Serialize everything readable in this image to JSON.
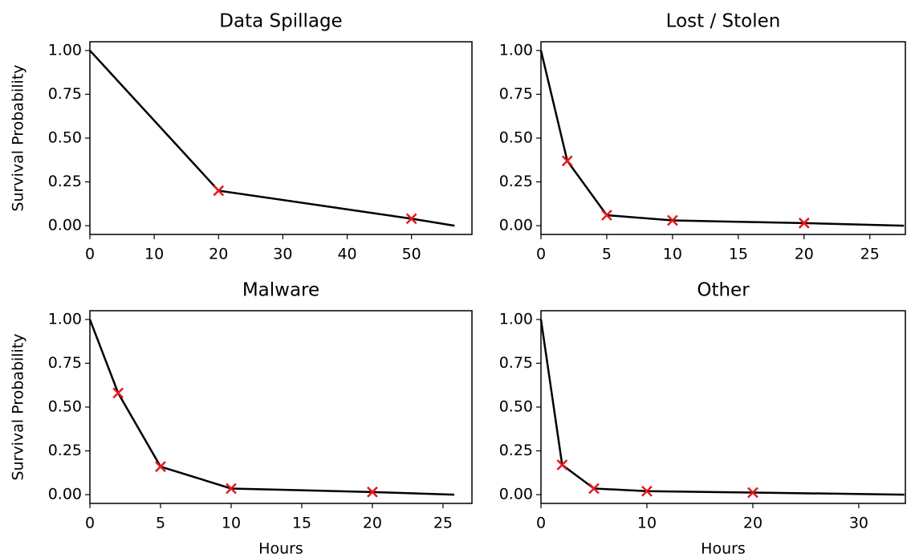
{
  "chart_data": [
    {
      "type": "line",
      "title": "Data Spillage",
      "ylabel": "Survival Probability",
      "color": "#000000",
      "x": [
        0,
        20,
        50,
        56.7
      ],
      "values": [
        1.0,
        0.2,
        0.04,
        0.0
      ],
      "marker_color": "#e41a1c",
      "marker_x": [
        20,
        50
      ],
      "marker_values": [
        0.2,
        0.04
      ],
      "xlim": [
        0,
        59.4
      ],
      "ylim": [
        -0.05,
        1.05
      ],
      "xticks": [
        0,
        10,
        20,
        30,
        40,
        50
      ],
      "yticks": [
        {
          "value": 0,
          "label": "0.00"
        },
        {
          "value": 0.25,
          "label": "0.25"
        },
        {
          "value": 0.5,
          "label": "0.50"
        },
        {
          "value": 0.75,
          "label": "0.75"
        },
        {
          "value": 1,
          "label": "1.00"
        }
      ]
    },
    {
      "type": "line",
      "title": "Lost / Stolen",
      "color": "#000000",
      "x": [
        0,
        2,
        5,
        10,
        20,
        27.6
      ],
      "values": [
        1.0,
        0.37,
        0.06,
        0.03,
        0.015,
        0.0
      ],
      "marker_color": "#e41a1c",
      "marker_x": [
        2,
        5,
        10,
        20
      ],
      "marker_values": [
        0.37,
        0.06,
        0.03,
        0.015
      ],
      "xlim": [
        0,
        27.7
      ],
      "ylim": [
        -0.05,
        1.05
      ],
      "xticks": [
        0,
        5,
        10,
        15,
        20,
        25
      ],
      "yticks": [
        {
          "value": 0,
          "label": "0.00"
        },
        {
          "value": 0.25,
          "label": "0.25"
        },
        {
          "value": 0.5,
          "label": "0.50"
        },
        {
          "value": 0.75,
          "label": "0.75"
        },
        {
          "value": 1,
          "label": "1.00"
        }
      ]
    },
    {
      "type": "line",
      "title": "Malware",
      "ylabel": "Survival Probability",
      "xlabel": "Hours",
      "color": "#000000",
      "x": [
        0,
        2,
        5,
        10,
        20,
        25.8
      ],
      "values": [
        1.0,
        0.58,
        0.16,
        0.035,
        0.015,
        0.0
      ],
      "marker_color": "#e41a1c",
      "marker_x": [
        2,
        5,
        10,
        20
      ],
      "marker_values": [
        0.58,
        0.16,
        0.035,
        0.015
      ],
      "xlim": [
        0,
        27.05
      ],
      "ylim": [
        -0.05,
        1.05
      ],
      "xticks": [
        0,
        5,
        10,
        15,
        20,
        25
      ],
      "yticks": [
        {
          "value": 0,
          "label": "0.00"
        },
        {
          "value": 0.25,
          "label": "0.25"
        },
        {
          "value": 0.5,
          "label": "0.50"
        },
        {
          "value": 0.75,
          "label": "0.75"
        },
        {
          "value": 1,
          "label": "1.00"
        }
      ]
    },
    {
      "type": "line",
      "title": "Other",
      "xlabel": "Hours",
      "color": "#000000",
      "x": [
        0,
        2,
        5,
        10,
        20,
        34.3
      ],
      "values": [
        1.0,
        0.17,
        0.035,
        0.02,
        0.012,
        0.0
      ],
      "marker_color": "#e41a1c",
      "marker_x": [
        2,
        5,
        10,
        20
      ],
      "marker_values": [
        0.17,
        0.035,
        0.02,
        0.012
      ],
      "xlim": [
        0,
        34.4
      ],
      "ylim": [
        -0.05,
        1.05
      ],
      "xticks": [
        0,
        10,
        20,
        30
      ],
      "yticks": [
        {
          "value": 0,
          "label": "0.00"
        },
        {
          "value": 0.25,
          "label": "0.25"
        },
        {
          "value": 0.5,
          "label": "0.50"
        },
        {
          "value": 0.75,
          "label": "0.75"
        },
        {
          "value": 1,
          "label": "1.00"
        }
      ]
    }
  ]
}
